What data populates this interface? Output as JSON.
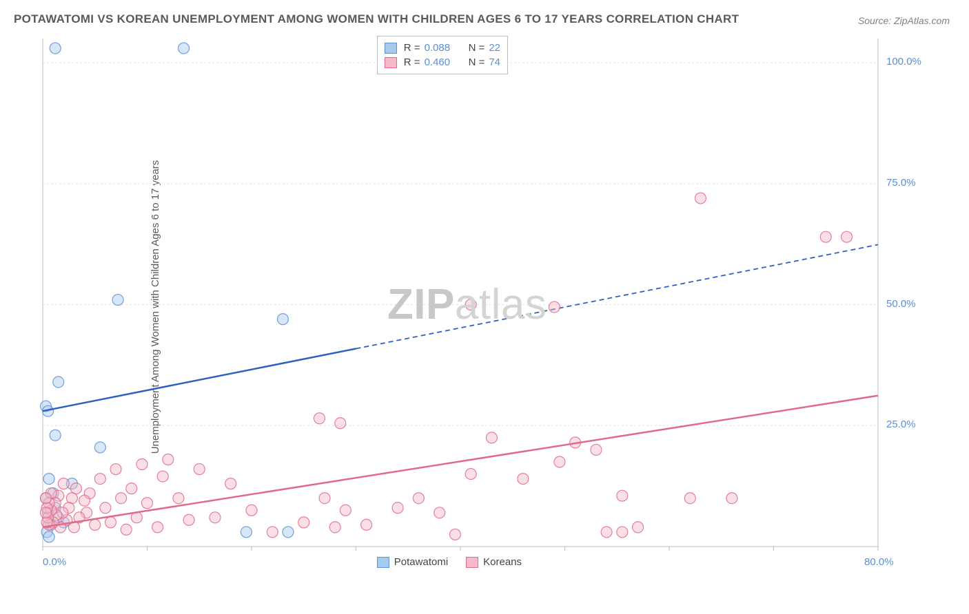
{
  "title": "POTAWATOMI VS KOREAN UNEMPLOYMENT AMONG WOMEN WITH CHILDREN AGES 6 TO 17 YEARS CORRELATION CHART",
  "source": "Source: ZipAtlas.com",
  "yaxis_label": "Unemployment Among Women with Children Ages 6 to 17 years",
  "watermark": {
    "bold": "ZIP",
    "light": "atlas"
  },
  "chart": {
    "type": "scatter",
    "background_color": "#ffffff",
    "grid_color": "#e2e2e2",
    "axis_color": "#bdbdbd",
    "tick_label_color": "#5b8fd6",
    "title_color": "#5a5a5a",
    "xlim": [
      0,
      80
    ],
    "ylim": [
      0,
      105
    ],
    "xticks": [
      0,
      10,
      20,
      30,
      40,
      50,
      60,
      70,
      80
    ],
    "xtick_labels": {
      "0": "0.0%",
      "80": "80.0%"
    },
    "yticks": [
      25,
      50,
      75,
      100
    ],
    "ytick_labels": {
      "25": "25.0%",
      "50": "50.0%",
      "75": "75.0%",
      "100": "100.0%"
    },
    "marker_radius": 8,
    "marker_opacity": 0.45,
    "series": [
      {
        "name": "Potawatomi",
        "color_fill": "#a8c9ee",
        "color_stroke": "#5b8fd6",
        "R": "0.088",
        "N": "22",
        "points": [
          [
            1.2,
            103
          ],
          [
            13.5,
            103
          ],
          [
            1.5,
            34
          ],
          [
            0.3,
            29
          ],
          [
            1.2,
            23
          ],
          [
            0.5,
            28
          ],
          [
            7.2,
            51
          ],
          [
            23,
            47
          ],
          [
            5.5,
            20.5
          ],
          [
            0.6,
            14
          ],
          [
            1.0,
            11
          ],
          [
            2.8,
            13
          ],
          [
            0.5,
            7
          ],
          [
            0.8,
            4.5
          ],
          [
            0.3,
            10
          ],
          [
            1.2,
            8
          ],
          [
            2.0,
            5
          ],
          [
            0.4,
            3
          ],
          [
            0.6,
            2
          ],
          [
            19.5,
            3
          ],
          [
            23.5,
            3
          ],
          [
            1.5,
            6
          ]
        ],
        "trend": {
          "slope": 0.43,
          "intercept": 28,
          "x_solid_max": 30,
          "line_color": "#2f5fbf",
          "line_width": 2.5
        }
      },
      {
        "name": "Koreans",
        "color_fill": "#f6b9c8",
        "color_stroke": "#e06a89",
        "R": "0.460",
        "N": "74",
        "points": [
          [
            63,
            72
          ],
          [
            75,
            64
          ],
          [
            77,
            64
          ],
          [
            41,
            50
          ],
          [
            49,
            49.5
          ],
          [
            26.5,
            26.5
          ],
          [
            28.5,
            25.5
          ],
          [
            41,
            15
          ],
          [
            43,
            22.5
          ],
          [
            46,
            14
          ],
          [
            49.5,
            17.5
          ],
          [
            51,
            21.5
          ],
          [
            53,
            20
          ],
          [
            54,
            3
          ],
          [
            55.5,
            10.5
          ],
          [
            55.5,
            3
          ],
          [
            57,
            4
          ],
          [
            62,
            10
          ],
          [
            66,
            10
          ],
          [
            39.5,
            2.5
          ],
          [
            38,
            7
          ],
          [
            36,
            10
          ],
          [
            34,
            8
          ],
          [
            31,
            4.5
          ],
          [
            29,
            7.5
          ],
          [
            28,
            4
          ],
          [
            27,
            10
          ],
          [
            25,
            5
          ],
          [
            22,
            3
          ],
          [
            20,
            7.5
          ],
          [
            18,
            13
          ],
          [
            16.5,
            6
          ],
          [
            15,
            16
          ],
          [
            14,
            5.5
          ],
          [
            13,
            10
          ],
          [
            12,
            18
          ],
          [
            11.5,
            14.5
          ],
          [
            11,
            4
          ],
          [
            10,
            9
          ],
          [
            9.5,
            17
          ],
          [
            9,
            6
          ],
          [
            8.5,
            12
          ],
          [
            8,
            3.5
          ],
          [
            7.5,
            10
          ],
          [
            7,
            16
          ],
          [
            6.5,
            5
          ],
          [
            6,
            8
          ],
          [
            5.5,
            14
          ],
          [
            5,
            4.5
          ],
          [
            4.5,
            11
          ],
          [
            4.2,
            7
          ],
          [
            4,
            9.5
          ],
          [
            3.5,
            6
          ],
          [
            3.2,
            12
          ],
          [
            3,
            4
          ],
          [
            2.8,
            10
          ],
          [
            2.5,
            8
          ],
          [
            2.3,
            5.5
          ],
          [
            2.0,
            13
          ],
          [
            1.9,
            7
          ],
          [
            1.7,
            4
          ],
          [
            1.5,
            10.5
          ],
          [
            1.3,
            6.5
          ],
          [
            1.2,
            9
          ],
          [
            1.0,
            5
          ],
          [
            0.8,
            11
          ],
          [
            0.8,
            7.5
          ],
          [
            0.6,
            4.5
          ],
          [
            0.6,
            9
          ],
          [
            0.5,
            6
          ],
          [
            0.4,
            8
          ],
          [
            0.4,
            5
          ],
          [
            0.3,
            10
          ],
          [
            0.3,
            7
          ]
        ],
        "trend": {
          "slope": 0.34,
          "intercept": 4,
          "x_solid_max": 80,
          "line_color": "#e06a89",
          "line_width": 2.5
        }
      }
    ],
    "legend_bottom": [
      {
        "label": "Potawatomi",
        "fill": "#a8c9ee",
        "stroke": "#5b8fd6"
      },
      {
        "label": "Koreans",
        "fill": "#f6b9c8",
        "stroke": "#e06a89"
      }
    ]
  }
}
